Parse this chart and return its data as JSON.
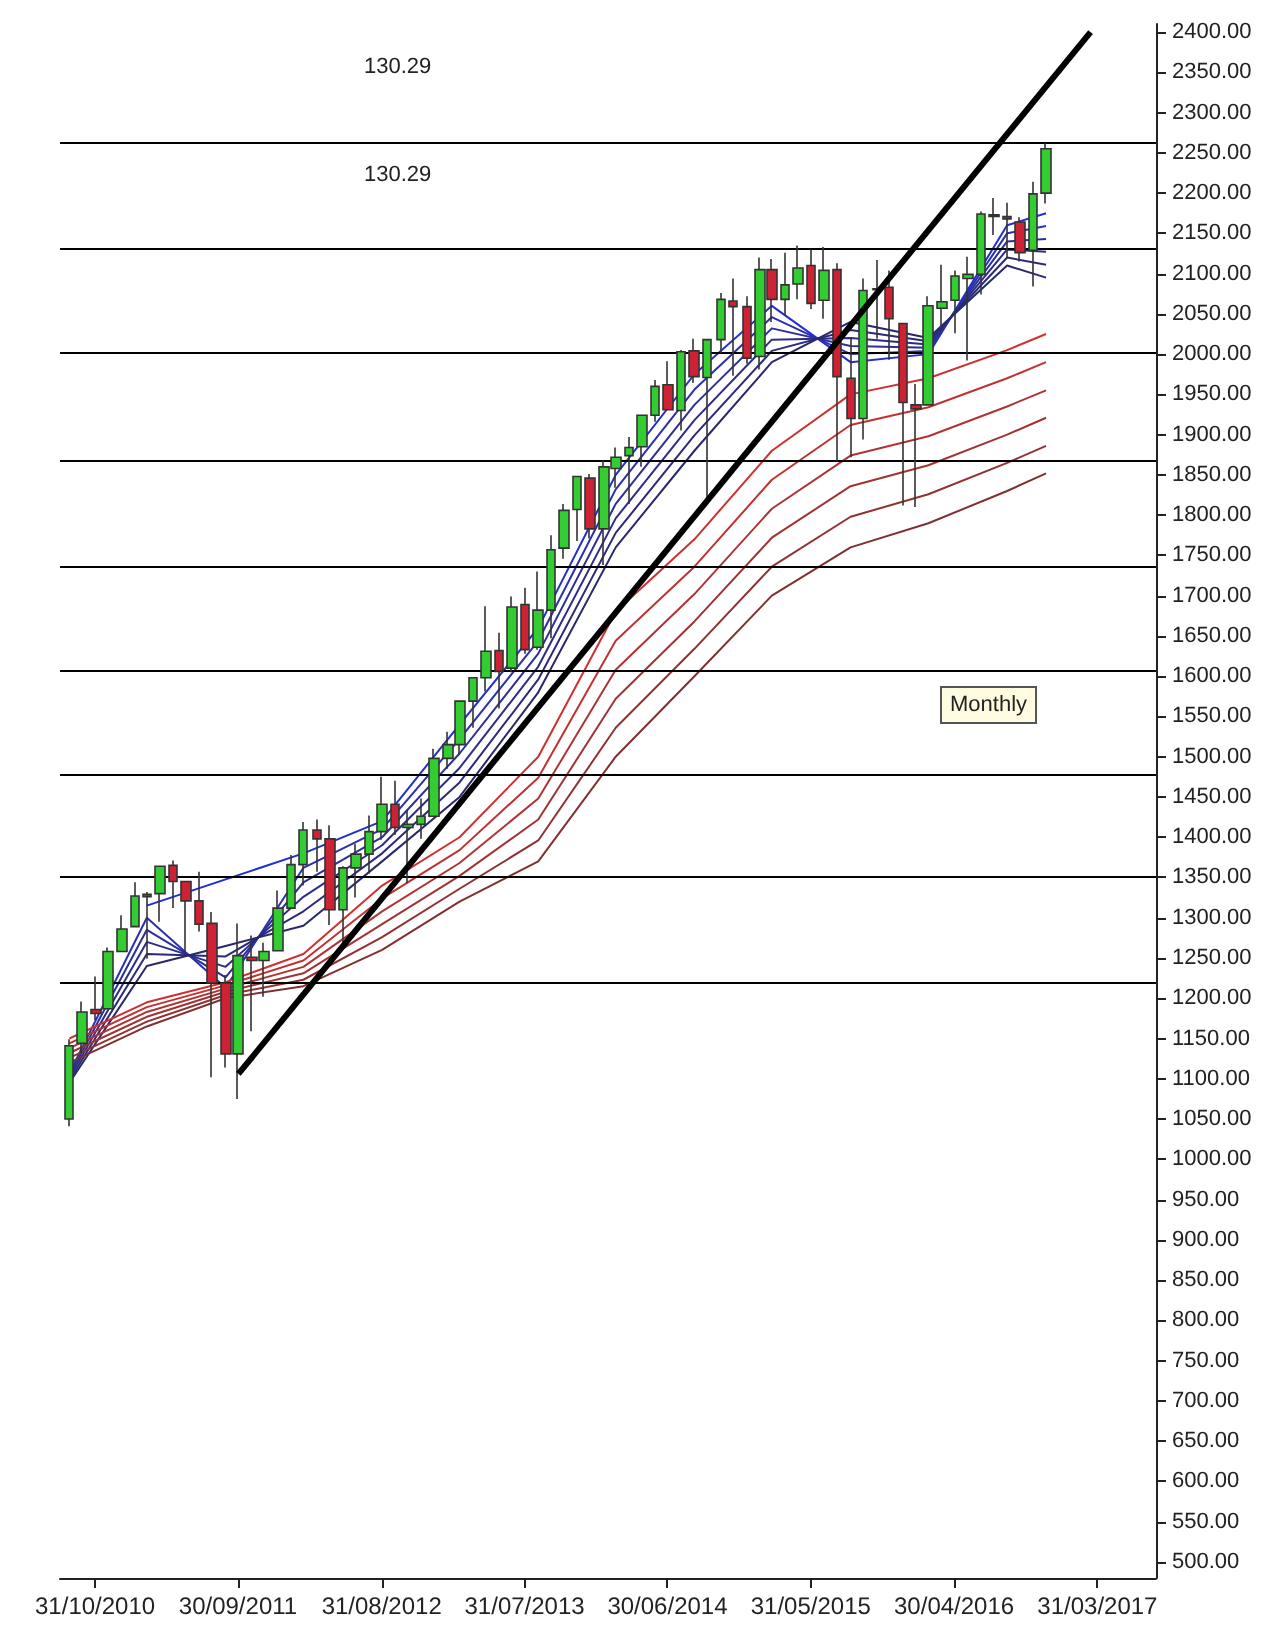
{
  "chart_data": {
    "type": "candlestick",
    "x": [
      "2010-09",
      "2010-10",
      "2010-11",
      "2010-12",
      "2011-01",
      "2011-02",
      "2011-03",
      "2011-04",
      "2011-05",
      "2011-06",
      "2011-07",
      "2011-08",
      "2011-09",
      "2011-10",
      "2011-11",
      "2011-12",
      "2012-01",
      "2012-02",
      "2012-03",
      "2012-04",
      "2012-05",
      "2012-06",
      "2012-07",
      "2012-08",
      "2012-09",
      "2012-10",
      "2012-11",
      "2012-12",
      "2013-01",
      "2013-02",
      "2013-03",
      "2013-04",
      "2013-05",
      "2013-06",
      "2013-07",
      "2013-08",
      "2013-09",
      "2013-10",
      "2013-11",
      "2013-12",
      "2014-01",
      "2014-02",
      "2014-03",
      "2014-04",
      "2014-05",
      "2014-06",
      "2014-07",
      "2014-08",
      "2014-09",
      "2014-10",
      "2014-11",
      "2014-12",
      "2015-01",
      "2015-02",
      "2015-03",
      "2015-04",
      "2015-05",
      "2015-06",
      "2015-07",
      "2015-08",
      "2015-09",
      "2015-10",
      "2015-11",
      "2015-12",
      "2016-01",
      "2016-02",
      "2016-03",
      "2016-04",
      "2016-05",
      "2016-06",
      "2016-07",
      "2016-08",
      "2016-09",
      "2016-10",
      "2016-11",
      "2016-12"
    ],
    "ohlc": [
      [
        1050,
        1149,
        1041,
        1141
      ],
      [
        1144,
        1196,
        1132,
        1183
      ],
      [
        1186,
        1227,
        1173,
        1181
      ],
      [
        1187,
        1263,
        1187,
        1258
      ],
      [
        1258,
        1303,
        1258,
        1286
      ],
      [
        1289,
        1344,
        1289,
        1327
      ],
      [
        1329,
        1332,
        1249,
        1326
      ],
      [
        1330,
        1365,
        1295,
        1364
      ],
      [
        1365,
        1371,
        1312,
        1345
      ],
      [
        1345,
        1345,
        1258,
        1321
      ],
      [
        1321,
        1357,
        1283,
        1292
      ],
      [
        1293,
        1307,
        1102,
        1219
      ],
      [
        1219,
        1229,
        1114,
        1131
      ],
      [
        1131,
        1293,
        1075,
        1253
      ],
      [
        1251,
        1278,
        1159,
        1247
      ],
      [
        1247,
        1269,
        1202,
        1258
      ],
      [
        1259,
        1334,
        1259,
        1312
      ],
      [
        1312,
        1378,
        1312,
        1366
      ],
      [
        1366,
        1419,
        1340,
        1409
      ],
      [
        1409,
        1422,
        1357,
        1398
      ],
      [
        1398,
        1415,
        1291,
        1310
      ],
      [
        1310,
        1364,
        1267,
        1362
      ],
      [
        1362,
        1392,
        1325,
        1379
      ],
      [
        1379,
        1427,
        1355,
        1407
      ],
      [
        1407,
        1475,
        1397,
        1441
      ],
      [
        1441,
        1470,
        1403,
        1412
      ],
      [
        1412,
        1434,
        1343,
        1416
      ],
      [
        1416,
        1448,
        1398,
        1426
      ],
      [
        1426,
        1510,
        1426,
        1498
      ],
      [
        1498,
        1531,
        1485,
        1515
      ],
      [
        1515,
        1570,
        1502,
        1569
      ],
      [
        1569,
        1598,
        1536,
        1598
      ],
      [
        1598,
        1687,
        1581,
        1631
      ],
      [
        1632,
        1654,
        1560,
        1606
      ],
      [
        1610,
        1699,
        1605,
        1686
      ],
      [
        1689,
        1710,
        1628,
        1633
      ],
      [
        1636,
        1730,
        1633,
        1682
      ],
      [
        1682,
        1775,
        1647,
        1757
      ],
      [
        1759,
        1814,
        1746,
        1806
      ],
      [
        1807,
        1849,
        1768,
        1848
      ],
      [
        1846,
        1851,
        1771,
        1783
      ],
      [
        1783,
        1868,
        1738,
        1860
      ],
      [
        1858,
        1884,
        1834,
        1872
      ],
      [
        1874,
        1897,
        1814,
        1884
      ],
      [
        1885,
        1924,
        1860,
        1924
      ],
      [
        1924,
        1968,
        1916,
        1960
      ],
      [
        1962,
        1991,
        1931,
        1931
      ],
      [
        1930,
        2005,
        1905,
        2003
      ],
      [
        2004,
        2019,
        1964,
        1972
      ],
      [
        1971,
        2018,
        1821,
        2018
      ],
      [
        2018,
        2076,
        2001,
        2068
      ],
      [
        2066,
        2094,
        1973,
        2059
      ],
      [
        2059,
        2072,
        1988,
        1995
      ],
      [
        1997,
        2120,
        1981,
        2105
      ],
      [
        2105,
        2118,
        2040,
        2068
      ],
      [
        2068,
        2126,
        2048,
        2086
      ],
      [
        2087,
        2135,
        2068,
        2107
      ],
      [
        2110,
        2130,
        2056,
        2063
      ],
      [
        2067,
        2133,
        2044,
        2104
      ],
      [
        2105,
        2113,
        1867,
        1972
      ],
      [
        1970,
        2021,
        1872,
        1920
      ],
      [
        1920,
        2094,
        1894,
        2079
      ],
      [
        2081,
        2117,
        2019,
        2080
      ],
      [
        2083,
        2104,
        1993,
        2044
      ],
      [
        2038,
        2038,
        1812,
        1940
      ],
      [
        1937,
        1963,
        1810,
        1932
      ],
      [
        1937,
        2072,
        1937,
        2060
      ],
      [
        2057,
        2111,
        2034,
        2065
      ],
      [
        2067,
        2104,
        2026,
        2097
      ],
      [
        2094,
        2121,
        1992,
        2099
      ],
      [
        2099,
        2177,
        2074,
        2174
      ],
      [
        2173,
        2194,
        2148,
        2171
      ],
      [
        2171,
        2188,
        2119,
        2168
      ],
      [
        2164,
        2170,
        2115,
        2126
      ],
      [
        2129,
        2214,
        2084,
        2199
      ],
      [
        2200,
        2262,
        2187,
        2255
      ]
    ],
    "colors": [
      "#33cc33",
      "#33cc33",
      "#cc2233",
      "#33cc33",
      "#33cc33",
      "#33cc33",
      "#cc2233",
      "#33cc33",
      "#cc2233",
      "#cc2233",
      "#cc2233",
      "#cc2233",
      "#cc2233",
      "#33cc33",
      "#cc2233",
      "#33cc33",
      "#33cc33",
      "#33cc33",
      "#33cc33",
      "#cc2233",
      "#cc2233",
      "#33cc33",
      "#33cc33",
      "#33cc33",
      "#33cc33",
      "#cc2233",
      "#33cc33",
      "#33cc33",
      "#33cc33",
      "#33cc33",
      "#33cc33",
      "#33cc33",
      "#33cc33",
      "#cc2233",
      "#33cc33",
      "#cc2233",
      "#33cc33",
      "#33cc33",
      "#33cc33",
      "#33cc33",
      "#cc2233",
      "#33cc33",
      "#33cc33",
      "#33cc33",
      "#33cc33",
      "#33cc33",
      "#cc2233",
      "#33cc33",
      "#cc2233",
      "#33cc33",
      "#33cc33",
      "#cc2233",
      "#cc2233",
      "#33cc33",
      "#cc2233",
      "#33cc33",
      "#33cc33",
      "#cc2233",
      "#33cc33",
      "#cc2233",
      "#cc2233",
      "#33cc33",
      "#cc2233",
      "#cc2233",
      "#cc2233",
      "#cc2233",
      "#33cc33",
      "#33cc33",
      "#33cc33",
      "#33cc33",
      "#33cc33",
      "#cc2233",
      "#cc2233",
      "#cc2233",
      "#33cc33",
      "#33cc33"
    ],
    "series": [
      {
        "type": "line",
        "color": "#1f2fd0",
        "x": [
          "2011-03",
          "2012-03",
          "2012-09",
          "2013-03",
          "2013-09",
          "2014-03",
          "2014-09",
          "2015-03",
          "2015-09",
          "2016-03",
          "2016-09",
          "2016-12"
        ],
        "values": [
          1315,
          1380,
          1420,
          1540,
          1660,
          1850,
          1975,
          2060,
          1990,
          2000,
          2160,
          2175
        ]
      },
      {
        "type": "line",
        "color": "#2a30b0",
        "x": [
          "2010-09",
          "2011-03",
          "2011-09",
          "2012-03",
          "2012-09",
          "2013-03",
          "2013-09",
          "2014-03",
          "2014-09",
          "2015-03",
          "2015-09",
          "2016-03",
          "2016-09",
          "2016-12"
        ],
        "values": [
          1107,
          1300,
          1213,
          1362,
          1410,
          1522,
          1644,
          1832,
          1956,
          2046,
          2000,
          2004,
          2150,
          2159
        ]
      },
      {
        "type": "line",
        "color": "#2b2f99",
        "x": [
          "2010-09",
          "2011-03",
          "2011-09",
          "2012-03",
          "2012-09",
          "2013-03",
          "2013-09",
          "2014-03",
          "2014-09",
          "2015-03",
          "2015-09",
          "2016-03",
          "2016-09",
          "2016-12"
        ],
        "values": [
          1104,
          1285,
          1226,
          1344,
          1400,
          1504,
          1628,
          1814,
          1937,
          2032,
          2010,
          2008,
          2140,
          2143
        ]
      },
      {
        "type": "line",
        "color": "#2b2d88",
        "x": [
          "2010-09",
          "2011-03",
          "2011-09",
          "2012-03",
          "2012-09",
          "2013-03",
          "2013-09",
          "2014-03",
          "2014-09",
          "2015-03",
          "2015-09",
          "2016-03",
          "2016-09",
          "2016-12"
        ],
        "values": [
          1101,
          1270,
          1239,
          1326,
          1390,
          1486,
          1612,
          1796,
          1918,
          2018,
          2020,
          2012,
          2130,
          2127
        ]
      },
      {
        "type": "line",
        "color": "#2a2b78",
        "x": [
          "2010-09",
          "2011-03",
          "2011-09",
          "2012-03",
          "2012-09",
          "2013-03",
          "2013-09",
          "2014-03",
          "2014-09",
          "2015-03",
          "2015-09",
          "2016-03",
          "2016-09",
          "2016-12"
        ],
        "values": [
          1098,
          1255,
          1252,
          1308,
          1380,
          1468,
          1596,
          1778,
          1899,
          2004,
          2030,
          2016,
          2120,
          2111
        ]
      },
      {
        "type": "line",
        "color": "#28286a",
        "x": [
          "2010-09",
          "2011-03",
          "2011-09",
          "2012-03",
          "2012-09",
          "2013-03",
          "2013-09",
          "2014-03",
          "2014-09",
          "2015-03",
          "2015-09",
          "2016-03",
          "2016-09",
          "2016-12"
        ],
        "values": [
          1095,
          1240,
          1265,
          1290,
          1370,
          1450,
          1580,
          1760,
          1880,
          1990,
          2040,
          2020,
          2110,
          2095
        ]
      },
      {
        "type": "line",
        "color": "#d03030",
        "x": [
          "2010-09",
          "2011-03",
          "2011-09",
          "2012-03",
          "2012-09",
          "2013-03",
          "2013-09",
          "2014-03",
          "2014-09",
          "2015-03",
          "2015-09",
          "2016-03",
          "2016-09",
          "2016-12"
        ],
        "values": [
          1150,
          1195,
          1220,
          1255,
          1340,
          1400,
          1500,
          1680,
          1770,
          1880,
          1950,
          1970,
          2005,
          2025
        ]
      },
      {
        "type": "line",
        "color": "#c03232",
        "x": [
          "2010-09",
          "2011-03",
          "2011-09",
          "2012-03",
          "2012-09",
          "2013-03",
          "2013-09",
          "2014-03",
          "2014-09",
          "2015-03",
          "2015-09",
          "2016-03",
          "2016-09",
          "2016-12"
        ],
        "values": [
          1144,
          1189,
          1216,
          1247,
          1324,
          1384,
          1474,
          1644,
          1736,
          1844,
          1912,
          1934,
          1970,
          1990
        ]
      },
      {
        "type": "line",
        "color": "#b03333",
        "x": [
          "2010-09",
          "2011-03",
          "2011-09",
          "2012-03",
          "2012-09",
          "2013-03",
          "2013-09",
          "2014-03",
          "2014-09",
          "2015-03",
          "2015-09",
          "2016-03",
          "2016-09",
          "2016-12"
        ],
        "values": [
          1138,
          1183,
          1212,
          1239,
          1308,
          1368,
          1448,
          1608,
          1702,
          1808,
          1874,
          1898,
          1935,
          1955
        ]
      },
      {
        "type": "line",
        "color": "#a03333",
        "x": [
          "2010-09",
          "2011-03",
          "2011-09",
          "2012-03",
          "2012-09",
          "2013-03",
          "2013-09",
          "2014-03",
          "2014-09",
          "2015-03",
          "2015-09",
          "2016-03",
          "2016-09",
          "2016-12"
        ],
        "values": [
          1132,
          1177,
          1208,
          1231,
          1292,
          1352,
          1422,
          1572,
          1668,
          1772,
          1836,
          1862,
          1900,
          1921
        ]
      },
      {
        "type": "line",
        "color": "#903232",
        "x": [
          "2010-09",
          "2011-03",
          "2011-09",
          "2012-03",
          "2012-09",
          "2013-03",
          "2013-09",
          "2014-03",
          "2014-09",
          "2015-03",
          "2015-09",
          "2016-03",
          "2016-09",
          "2016-12"
        ],
        "values": [
          1126,
          1171,
          1204,
          1223,
          1276,
          1336,
          1396,
          1536,
          1634,
          1736,
          1798,
          1826,
          1865,
          1886
        ]
      },
      {
        "type": "line",
        "color": "#803030",
        "x": [
          "2010-09",
          "2011-03",
          "2011-09",
          "2012-03",
          "2012-09",
          "2013-03",
          "2013-09",
          "2014-03",
          "2014-09",
          "2015-03",
          "2015-09",
          "2016-03",
          "2016-09",
          "2016-12"
        ],
        "values": [
          1120,
          1165,
          1200,
          1215,
          1260,
          1320,
          1370,
          1500,
          1600,
          1700,
          1760,
          1790,
          1830,
          1852
        ]
      },
      {
        "type": "line",
        "color": "#000000",
        "x": [
          "2011-10",
          "2017-03-15"
        ],
        "values": [
          1106,
          2400
        ]
      }
    ],
    "ref_lines": [
      {
        "axis": "y",
        "value": 2262,
        "color": "#000000"
      },
      {
        "axis": "y",
        "value": 2132,
        "color": "#000000"
      },
      {
        "axis": "y",
        "value": 2002,
        "color": "#000000"
      },
      {
        "axis": "y",
        "value": 1867,
        "color": "#000000"
      },
      {
        "axis": "y",
        "value": 1737,
        "color": "#000000"
      },
      {
        "axis": "y",
        "value": 1607,
        "color": "#000000"
      },
      {
        "axis": "y",
        "value": 1478,
        "color": "#000000"
      },
      {
        "axis": "y",
        "value": 1351,
        "color": "#000000"
      },
      {
        "axis": "y",
        "value": 1220,
        "color": "#000000"
      }
    ],
    "annotations": [
      "130.29",
      "130.29",
      "Monthly"
    ],
    "marker": "none",
    "grid": false,
    "xlim": [
      "2010-08-10",
      "2017-08-15"
    ],
    "xticks": [
      {
        "value": "2010-10-31",
        "label": "31/10/2010"
      },
      {
        "value": "2011-09-30",
        "label": "30/09/2011"
      },
      {
        "value": "2012-08-31",
        "label": "31/08/2012"
      },
      {
        "value": "2013-07-31",
        "label": "31/07/2013"
      },
      {
        "value": "2014-06-30",
        "label": "30/06/2014"
      },
      {
        "value": "2015-05-31",
        "label": "31/05/2015"
      },
      {
        "value": "2016-04-30",
        "label": "30/04/2016"
      },
      {
        "value": "2017-03-31",
        "label": "31/03/2017"
      }
    ],
    "ylim": [
      480,
      2410
    ],
    "yticks": [
      {
        "value": 500,
        "label": "500.00"
      },
      {
        "value": 550,
        "label": "550.00"
      },
      {
        "value": 600,
        "label": "600.00"
      },
      {
        "value": 650,
        "label": "650.00"
      },
      {
        "value": 700,
        "label": "700.00"
      },
      {
        "value": 750,
        "label": "750.00"
      },
      {
        "value": 800,
        "label": "800.00"
      },
      {
        "value": 850,
        "label": "850.00"
      },
      {
        "value": 900,
        "label": "900.00"
      },
      {
        "value": 950,
        "label": "950.00"
      },
      {
        "value": 1000,
        "label": "1000.00"
      },
      {
        "value": 1050,
        "label": "1050.00"
      },
      {
        "value": 1100,
        "label": "1100.00"
      },
      {
        "value": 1150,
        "label": "1150.00"
      },
      {
        "value": 1200,
        "label": "1200.00"
      },
      {
        "value": 1250,
        "label": "1250.00"
      },
      {
        "value": 1300,
        "label": "1300.00"
      },
      {
        "value": 1350,
        "label": "1350.00"
      },
      {
        "value": 1400,
        "label": "1400.00"
      },
      {
        "value": 1450,
        "label": "1450.00"
      },
      {
        "value": 1500,
        "label": "1500.00"
      },
      {
        "value": 1550,
        "label": "1550.00"
      },
      {
        "value": 1600,
        "label": "1600.00"
      },
      {
        "value": 1650,
        "label": "1650.00"
      },
      {
        "value": 1700,
        "label": "1700.00"
      },
      {
        "value": 1750,
        "label": "1750.00"
      },
      {
        "value": 1800,
        "label": "1800.00"
      },
      {
        "value": 1850,
        "label": "1850.00"
      },
      {
        "value": 1900,
        "label": "1900.00"
      },
      {
        "value": 1950,
        "label": "1950.00"
      },
      {
        "value": 2000,
        "label": "2000.00"
      },
      {
        "value": 2050,
        "label": "2050.00"
      },
      {
        "value": 2100,
        "label": "2100.00"
      },
      {
        "value": 2150,
        "label": "2150.00"
      },
      {
        "value": 2200,
        "label": "2200.00"
      },
      {
        "value": 2250,
        "label": "2250.00"
      },
      {
        "value": 2300,
        "label": "2300.00"
      },
      {
        "value": 2350,
        "label": "2350.00"
      },
      {
        "value": 2400,
        "label": "2400.00"
      }
    ]
  }
}
